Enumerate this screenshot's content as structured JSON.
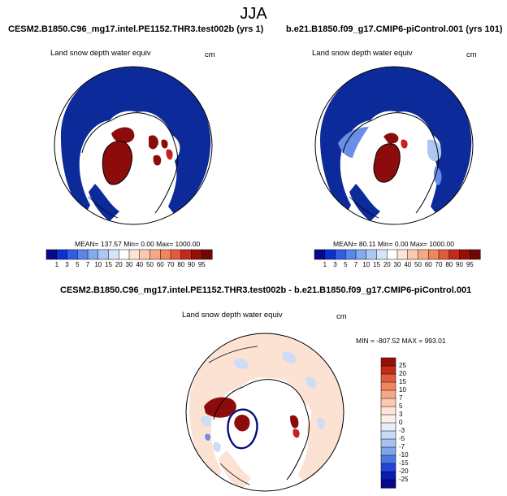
{
  "page": {
    "title": "JJA"
  },
  "panels": [
    {
      "id": "panel-test",
      "case_title": "CESM2.B1850.C96_mg17.intel.PE1152.THR3.test002b (yrs 1)",
      "variable": "Land snow depth water equiv",
      "units": "cm",
      "stats": "MEAN= 137.57  Min=   0.00  Max= 1000.00"
    },
    {
      "id": "panel-control",
      "case_title": "b.e21.B1850.f09_g17.CMIP6-piControl.001 (yrs 101)",
      "variable": "Land snow depth water equiv",
      "units": "cm",
      "stats": "MEAN=  80.11  Min=   0.00  Max= 1000.00"
    },
    {
      "id": "panel-diff",
      "case_title": "CESM2.B1850.C96_mg17.intel.PE1152.THR3.test002b - b.e21.B1850.f09_g17.CMIP6-piControl.001",
      "variable": "Land snow depth water equiv",
      "units": "cm",
      "stats": "MIN = -807.52 MAX = 993.01"
    }
  ],
  "colorbar_abs": {
    "labels": [
      "1",
      "3",
      "5",
      "7",
      "10",
      "15",
      "20",
      "30",
      "40",
      "50",
      "60",
      "70",
      "80",
      "90",
      "95"
    ],
    "colors": [
      "#08088c",
      "#0c2fd0",
      "#2f5ee6",
      "#5a86ec",
      "#86aaf0",
      "#aec8f4",
      "#d6e4f8",
      "#ffffff",
      "#fde4d6",
      "#fcc8ae",
      "#f8a886",
      "#f28460",
      "#e25c3c",
      "#c42a1c",
      "#961008",
      "#6e0804"
    ]
  },
  "colorbar_diff": {
    "labels": [
      "25",
      "20",
      "15",
      "10",
      "7",
      "5",
      "3",
      "0",
      "-3",
      "-5",
      "-7",
      "-10",
      "-15",
      "-20",
      "-25"
    ],
    "colors": [
      "#961008",
      "#c42a1c",
      "#e25c3c",
      "#f28460",
      "#f8a886",
      "#fcc8ae",
      "#fde4d6",
      "#fdf0e8",
      "#e6eefa",
      "#c8daf4",
      "#a6c2f0",
      "#7ea4ec",
      "#4c78e6",
      "#2446d8",
      "#0c1cb0",
      "#08088c"
    ]
  },
  "map_colors": {
    "ocean_blue": "#0c2a9a",
    "snow_red": "#8c0c0c",
    "diff_bg": "#fbe2d2",
    "diff_neg": "#cfdcf6"
  }
}
